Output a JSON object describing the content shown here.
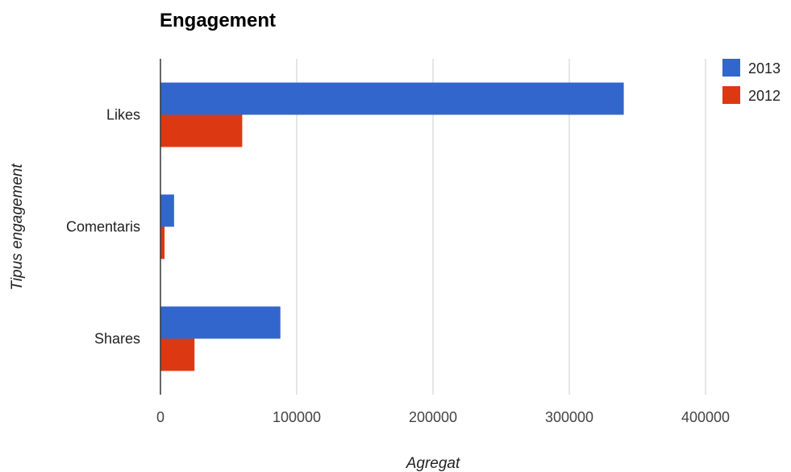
{
  "chart_data": {
    "type": "bar",
    "orientation": "horizontal",
    "title": "Engagement",
    "xlabel": "Agregat",
    "ylabel": "Tipus engagement",
    "categories": [
      "Likes",
      "Comentaris",
      "Shares"
    ],
    "series": [
      {
        "name": "2013",
        "color": "#3366cc",
        "values": [
          340000,
          10000,
          88000
        ]
      },
      {
        "name": "2012",
        "color": "#dc3912",
        "values": [
          60000,
          3000,
          25000
        ]
      }
    ],
    "xlim": [
      0,
      400000
    ],
    "xticks": [
      "0",
      "100000",
      "200000",
      "300000",
      "400000"
    ],
    "grid": true,
    "legend_position": "right"
  }
}
